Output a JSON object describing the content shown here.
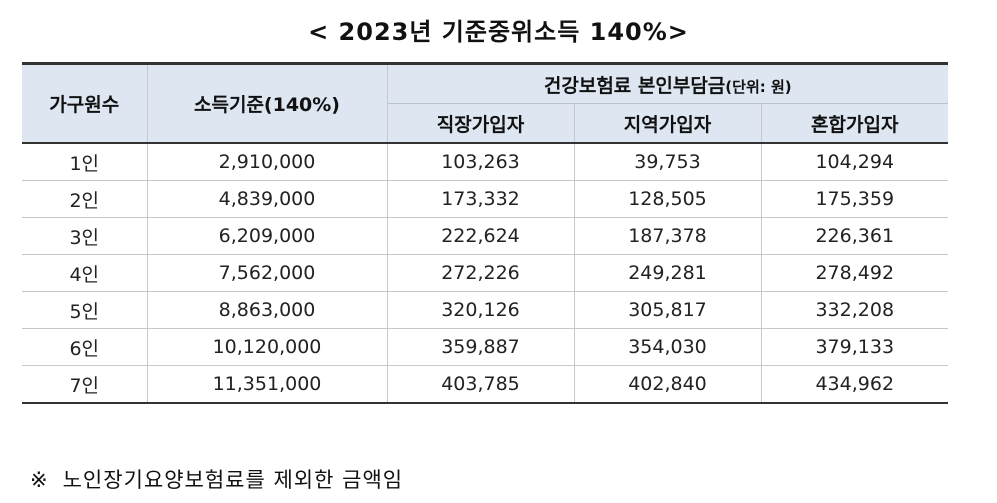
{
  "title": "< 2023년 기준중위소득 140%>",
  "headers": {
    "household": "가구원수",
    "income": "소득기준(140%)",
    "premium_group": "건강보험료 본인부담금",
    "premium_unit": "(단위: 원)",
    "employee": "직장가입자",
    "regional": "지역가입자",
    "mixed": "혼합가입자"
  },
  "rows": [
    {
      "household": "1인",
      "income": "2,910,000",
      "employee": "103,263",
      "regional": "39,753",
      "mixed": "104,294"
    },
    {
      "household": "2인",
      "income": "4,839,000",
      "employee": "173,332",
      "regional": "128,505",
      "mixed": "175,359"
    },
    {
      "household": "3인",
      "income": "6,209,000",
      "employee": "222,624",
      "regional": "187,378",
      "mixed": "226,361"
    },
    {
      "household": "4인",
      "income": "7,562,000",
      "employee": "272,226",
      "regional": "249,281",
      "mixed": "278,492"
    },
    {
      "household": "5인",
      "income": "8,863,000",
      "employee": "320,126",
      "regional": "305,817",
      "mixed": "332,208"
    },
    {
      "household": "6인",
      "income": "10,120,000",
      "employee": "359,887",
      "regional": "354,030",
      "mixed": "379,133"
    },
    {
      "household": "7인",
      "income": "11,351,000",
      "employee": "403,785",
      "regional": "402,840",
      "mixed": "434,962"
    }
  ],
  "note": {
    "mark": "※",
    "text": "노인장기요양보험료를 제외한 금액임"
  }
}
